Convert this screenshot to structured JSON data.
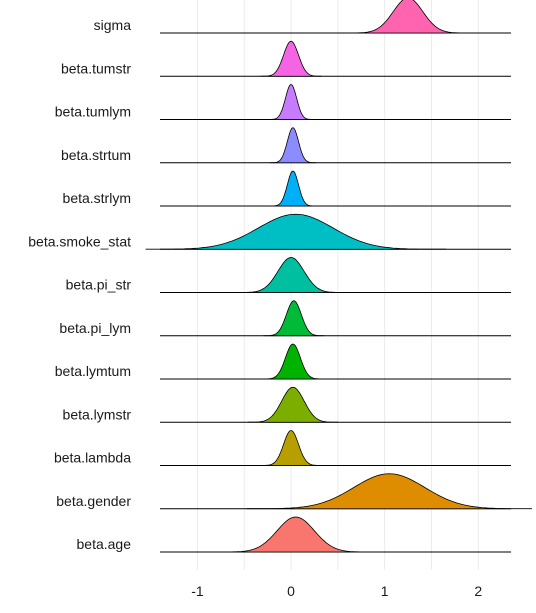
{
  "chart_data": {
    "type": "ridgeline",
    "xticks": [
      -1,
      0,
      1,
      2
    ],
    "xlim": [
      -1.4,
      2.35
    ],
    "grid": true,
    "series": [
      {
        "name": "sigma",
        "mean": 1.25,
        "sd": 0.16,
        "color": "#FF64B0"
      },
      {
        "name": "beta.tumstr",
        "mean": 0.0,
        "sd": 0.08,
        "color": "#F564E3"
      },
      {
        "name": "beta.tumlym",
        "mean": 0.0,
        "sd": 0.06,
        "color": "#C77CFF"
      },
      {
        "name": "beta.strtum",
        "mean": 0.02,
        "sd": 0.06,
        "color": "#8C8CFF"
      },
      {
        "name": "beta.strlym",
        "mean": 0.02,
        "sd": 0.06,
        "color": "#00B0F6"
      },
      {
        "name": "beta.smoke_stat",
        "mean": 0.05,
        "sd": 0.4,
        "color": "#00BFC4"
      },
      {
        "name": "beta.pi_str",
        "mean": 0.0,
        "sd": 0.14,
        "color": "#00BFA0"
      },
      {
        "name": "beta.pi_lym",
        "mean": 0.03,
        "sd": 0.08,
        "color": "#00BA38"
      },
      {
        "name": "beta.lymtum",
        "mean": 0.02,
        "sd": 0.08,
        "color": "#00B300"
      },
      {
        "name": "beta.lymstr",
        "mean": 0.02,
        "sd": 0.12,
        "color": "#7CAE00"
      },
      {
        "name": "beta.lambda",
        "mean": 0.0,
        "sd": 0.08,
        "color": "#B79F00"
      },
      {
        "name": "beta.gender",
        "mean": 1.05,
        "sd": 0.38,
        "color": "#DE8C00"
      },
      {
        "name": "beta.age",
        "mean": 0.05,
        "sd": 0.2,
        "color": "#F8766D"
      }
    ]
  }
}
